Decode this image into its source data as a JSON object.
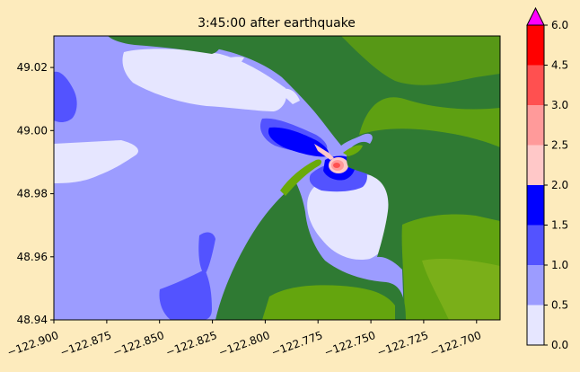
{
  "chart_data": {
    "type": "heatmap",
    "title": "3:45:00 after earthquake",
    "xlabel": "",
    "ylabel": "",
    "xlim": [
      -122.905,
      -122.69
    ],
    "ylim": [
      48.94,
      49.03
    ],
    "x_ticks": [
      "−122.900",
      "−122.875",
      "−122.850",
      "−122.825",
      "−122.800",
      "−122.775",
      "−122.750",
      "−122.725",
      "−122.700"
    ],
    "x_tick_values": [
      -122.9,
      -122.875,
      -122.85,
      -122.825,
      -122.8,
      -122.775,
      -122.75,
      -122.725,
      -122.7
    ],
    "y_ticks": [
      "48.94",
      "48.96",
      "48.98",
      "49.00",
      "49.02"
    ],
    "y_tick_values": [
      48.94,
      48.96,
      48.98,
      49.0,
      49.02
    ],
    "colorbar": {
      "boundaries": [
        0.0,
        0.5,
        1.0,
        1.5,
        2.0,
        2.5,
        3.0,
        4.5,
        6.0
      ],
      "tick_labels": [
        "0.0",
        "0.5",
        "1.0",
        "1.5",
        "2.0",
        "2.5",
        "3.0",
        "4.5",
        "6.0"
      ],
      "colors": [
        "#e6e6ff",
        "#9c9cff",
        "#5353ff",
        "#0000ff",
        "#ffc8c8",
        "#ff9a9a",
        "#ff5050",
        "#ff0000"
      ],
      "extend_max_color": "#ff00ff"
    },
    "land_colors": [
      "#2f7a33",
      "#4a8a20",
      "#6aaa0a",
      "#8ab820"
    ]
  }
}
